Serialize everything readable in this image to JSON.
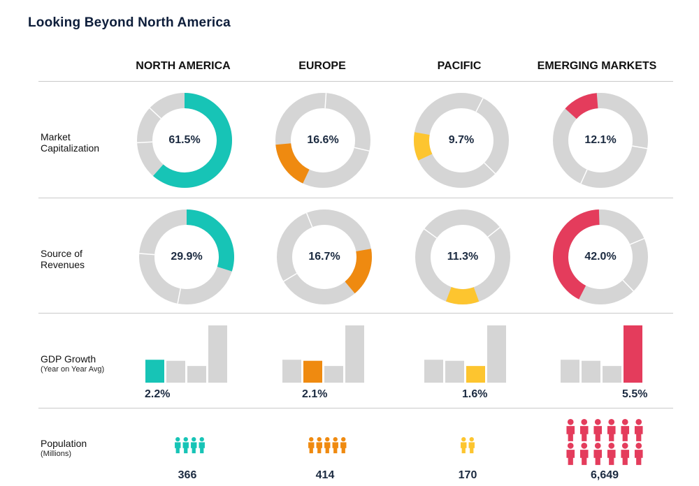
{
  "title": "Looking Beyond North America",
  "regions": [
    {
      "key": "na",
      "name": "NORTH AMERICA",
      "color": "#17c4b6"
    },
    {
      "key": "eu",
      "name": "EUROPE",
      "color": "#ef8a10"
    },
    {
      "key": "pa",
      "name": "PACIFIC",
      "color": "#fdc52f"
    },
    {
      "key": "em",
      "name": "EMERGING MARKETS",
      "color": "#e43c5c"
    }
  ],
  "row_labels": {
    "market_cap": "Market Capitalization",
    "revenues": "Source of Revenues",
    "gdp": "GDP Growth",
    "gdp_sub": "(Year on Year Avg)",
    "population": "Population",
    "population_sub": "(Millions)"
  },
  "colors": {
    "gray": "#d5d5d5",
    "rule": "#c9c9c9"
  },
  "chart_data": {
    "type": "donut",
    "categories": [
      "NORTH AMERICA",
      "EUROPE",
      "PACIFIC",
      "EMERGING MARKETS"
    ],
    "market_cap": {
      "label": "Market Capitalization",
      "values": [
        61.5,
        16.6,
        9.7,
        12.1
      ],
      "labels": [
        "61.5%",
        "16.6%",
        "9.7%",
        "12.1%"
      ]
    },
    "source_of_revenues": {
      "label": "Source of Revenues",
      "values": [
        29.9,
        16.7,
        11.3,
        42.0
      ],
      "labels": [
        "29.9%",
        "16.7%",
        "11.3%",
        "42.0%"
      ]
    },
    "gdp_growth": {
      "label": "GDP Growth (Year on Year Avg)",
      "type": "bar",
      "values": [
        2.2,
        2.1,
        1.6,
        5.5
      ],
      "labels": [
        "2.2%",
        "2.1%",
        "1.6%",
        "5.5%"
      ]
    },
    "population_millions": {
      "label": "Population (Millions)",
      "type": "pictograph",
      "values": [
        366,
        414,
        170,
        6649
      ],
      "labels": [
        "366",
        "414",
        "170",
        "6,649"
      ]
    }
  }
}
